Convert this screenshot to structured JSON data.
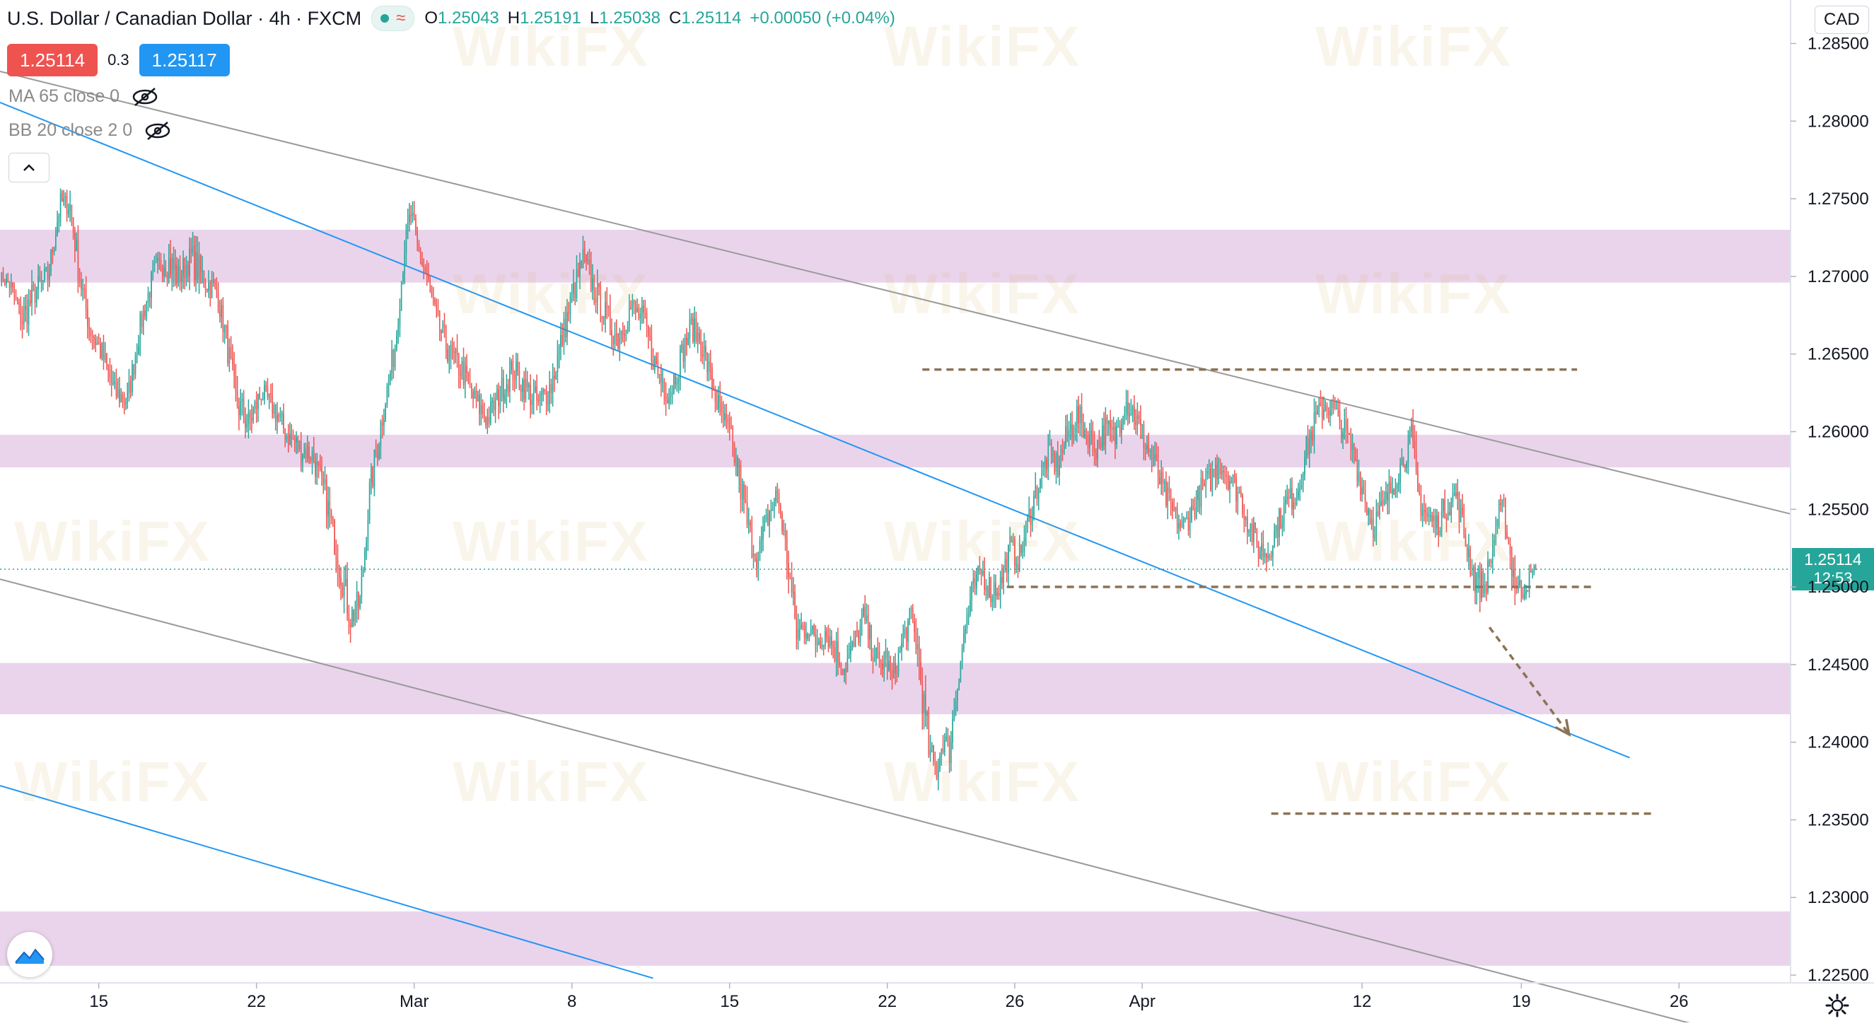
{
  "header": {
    "symbol_title": "U.S. Dollar / Canadian Dollar · 4h · FXCM",
    "ohlc": {
      "o_label": "O",
      "o": "1.25043",
      "h_label": "H",
      "h": "1.25191",
      "l_label": "L",
      "l": "1.25038",
      "c_label": "C",
      "c": "1.25114",
      "change": "+0.00050 (+0.04%)"
    },
    "sell_price": "1.25114",
    "spread": "0.3",
    "buy_price": "1.25117",
    "indicators": [
      "MA 65 close 0",
      "BB 20 close 2 0"
    ],
    "currency": "CAD"
  },
  "watermark": "WikiFX",
  "colors": {
    "up": "#26a69a",
    "down": "#ef5350",
    "zone": "#e6cce9",
    "channel_gray": "#9a9a9a",
    "channel_blue": "#2196f3",
    "level_dash": "#8b7355",
    "price_tag": "#26a69a"
  },
  "chart_data": {
    "type": "candlestick",
    "title": "U.S. Dollar / Canadian Dollar · 4h · FXCM",
    "y_axis": {
      "range": [
        1.2245,
        1.2878
      ],
      "ticks": [
        "1.28500",
        "1.28000",
        "1.27500",
        "1.27000",
        "1.26500",
        "1.26000",
        "1.25500",
        "1.25000",
        "1.24500",
        "1.24000",
        "1.23500",
        "1.23000",
        "1.22500"
      ],
      "position": "right"
    },
    "x_axis": {
      "ticks": [
        {
          "label": "15",
          "bar": 62
        },
        {
          "label": "22",
          "bar": 161
        },
        {
          "label": "Mar",
          "bar": 260
        },
        {
          "label": "8",
          "bar": 359
        },
        {
          "label": "15",
          "bar": 458
        },
        {
          "label": "22",
          "bar": 557
        },
        {
          "label": "26",
          "bar": 637
        },
        {
          "label": "Apr",
          "bar": 717
        },
        {
          "label": "12",
          "bar": 855
        },
        {
          "label": "19",
          "bar": 955
        },
        {
          "label": "26",
          "bar": 1054
        }
      ],
      "bar_range": [
        0,
        1124
      ]
    },
    "current_price": {
      "value": 1.25114,
      "label": "1.25114",
      "countdown": "12:53"
    },
    "price_path": [
      [
        0,
        1.27,
        1.2708,
        1.2692
      ],
      [
        6,
        1.2695,
        1.2712,
        1.268
      ],
      [
        14,
        1.2672,
        1.27,
        1.2652
      ],
      [
        22,
        1.269,
        1.271,
        1.267
      ],
      [
        30,
        1.27,
        1.272,
        1.2685
      ],
      [
        38,
        1.2748,
        1.2758,
        1.2728
      ],
      [
        44,
        1.2745,
        1.2765,
        1.272
      ],
      [
        50,
        1.27,
        1.2725,
        1.2685
      ],
      [
        56,
        1.2668,
        1.269,
        1.265
      ],
      [
        64,
        1.265,
        1.267,
        1.263
      ],
      [
        72,
        1.2625,
        1.2645,
        1.2608
      ],
      [
        80,
        1.262,
        1.2642,
        1.2605
      ],
      [
        88,
        1.2668,
        1.2685,
        1.265
      ],
      [
        96,
        1.27,
        1.272,
        1.268
      ],
      [
        104,
        1.2712,
        1.2748,
        1.2695
      ],
      [
        112,
        1.27,
        1.2722,
        1.2682
      ],
      [
        120,
        1.2712,
        1.274,
        1.269
      ],
      [
        128,
        1.2698,
        1.272,
        1.268
      ],
      [
        136,
        1.269,
        1.2705,
        1.267
      ],
      [
        142,
        1.266,
        1.269,
        1.2645
      ],
      [
        148,
        1.262,
        1.265,
        1.26
      ],
      [
        156,
        1.2605,
        1.263,
        1.2588
      ],
      [
        164,
        1.2625,
        1.264,
        1.2605
      ],
      [
        172,
        1.2615,
        1.2632,
        1.2595
      ],
      [
        180,
        1.2598,
        1.2612,
        1.2575
      ],
      [
        188,
        1.259,
        1.2608,
        1.257
      ],
      [
        196,
        1.2585,
        1.2605,
        1.2565
      ],
      [
        204,
        1.256,
        1.2585,
        1.254
      ],
      [
        212,
        1.252,
        1.255,
        1.25
      ],
      [
        220,
        1.248,
        1.251,
        1.2465
      ],
      [
        226,
        1.249,
        1.251,
        1.247
      ],
      [
        232,
        1.256,
        1.259,
        1.254
      ],
      [
        240,
        1.261,
        1.263,
        1.259
      ],
      [
        248,
        1.2655,
        1.268,
        1.264
      ],
      [
        254,
        1.272,
        1.274,
        1.27
      ],
      [
        258,
        1.274,
        1.276,
        1.272
      ],
      [
        262,
        1.2718,
        1.274,
        1.27
      ],
      [
        268,
        1.27,
        1.2715,
        1.268
      ],
      [
        274,
        1.2672,
        1.2695,
        1.2655
      ],
      [
        282,
        1.265,
        1.2672,
        1.263
      ],
      [
        290,
        1.264,
        1.266,
        1.262
      ],
      [
        298,
        1.262,
        1.264,
        1.26
      ],
      [
        306,
        1.2608,
        1.263,
        1.2592
      ],
      [
        314,
        1.2625,
        1.2645,
        1.2605
      ],
      [
        322,
        1.264,
        1.266,
        1.262
      ],
      [
        330,
        1.2628,
        1.265,
        1.2608
      ],
      [
        338,
        1.2618,
        1.264,
        1.2598
      ],
      [
        346,
        1.263,
        1.2652,
        1.261
      ],
      [
        354,
        1.2665,
        1.269,
        1.2648
      ],
      [
        360,
        1.269,
        1.2712,
        1.267
      ],
      [
        366,
        1.271,
        1.2735,
        1.269
      ],
      [
        372,
        1.2695,
        1.2715,
        1.2675
      ],
      [
        380,
        1.2675,
        1.2698,
        1.2655
      ],
      [
        388,
        1.266,
        1.268,
        1.264
      ],
      [
        396,
        1.268,
        1.2698,
        1.266
      ],
      [
        404,
        1.2672,
        1.269,
        1.265
      ],
      [
        412,
        1.264,
        1.2665,
        1.262
      ],
      [
        420,
        1.2625,
        1.2648,
        1.2605
      ],
      [
        428,
        1.265,
        1.2668,
        1.263
      ],
      [
        434,
        1.2668,
        1.2685,
        1.2648
      ],
      [
        440,
        1.2658,
        1.268,
        1.264
      ],
      [
        446,
        1.2635,
        1.266,
        1.2615
      ],
      [
        452,
        1.2612,
        1.2635,
        1.2595
      ],
      [
        458,
        1.2598,
        1.262,
        1.2578
      ],
      [
        464,
        1.257,
        1.26,
        1.2548
      ],
      [
        470,
        1.2535,
        1.2565,
        1.2515
      ],
      [
        476,
        1.252,
        1.254,
        1.25
      ],
      [
        482,
        1.2545,
        1.2565,
        1.2525
      ],
      [
        488,
        1.256,
        1.2575,
        1.254
      ],
      [
        494,
        1.252,
        1.255,
        1.25
      ],
      [
        500,
        1.247,
        1.25,
        1.2455
      ],
      [
        506,
        1.2475,
        1.2495,
        1.2455
      ],
      [
        512,
        1.2465,
        1.2485,
        1.244
      ],
      [
        518,
        1.2472,
        1.2492,
        1.2455
      ],
      [
        524,
        1.246,
        1.2485,
        1.244
      ],
      [
        530,
        1.2448,
        1.247,
        1.2432
      ],
      [
        536,
        1.2462,
        1.248,
        1.244
      ],
      [
        542,
        1.248,
        1.25,
        1.246
      ],
      [
        548,
        1.246,
        1.2485,
        1.2442
      ],
      [
        552,
        1.2448,
        1.247,
        1.243
      ],
      [
        556,
        1.2455,
        1.2475,
        1.244
      ],
      [
        560,
        1.244,
        1.246,
        1.2425
      ],
      [
        564,
        1.2455,
        1.247,
        1.2438
      ],
      [
        568,
        1.247,
        1.249,
        1.2452
      ],
      [
        572,
        1.248,
        1.25,
        1.246
      ],
      [
        576,
        1.246,
        1.2492,
        1.244
      ],
      [
        580,
        1.242,
        1.2462,
        1.2395
      ],
      [
        584,
        1.239,
        1.242,
        1.237
      ],
      [
        588,
        1.2382,
        1.24,
        1.2362
      ],
      [
        592,
        1.2402,
        1.242,
        1.238
      ],
      [
        596,
        1.2395,
        1.242,
        1.2375
      ],
      [
        600,
        1.243,
        1.245,
        1.241
      ],
      [
        604,
        1.2462,
        1.2482,
        1.244
      ],
      [
        610,
        1.2495,
        1.2515,
        1.2475
      ],
      [
        616,
        1.251,
        1.253,
        1.249
      ],
      [
        622,
        1.2498,
        1.2522,
        1.2478
      ],
      [
        628,
        1.2502,
        1.252,
        1.2482
      ],
      [
        634,
        1.2525,
        1.2545,
        1.2505
      ],
      [
        640,
        1.2518,
        1.254,
        1.2498
      ],
      [
        646,
        1.2545,
        1.2565,
        1.2525
      ],
      [
        652,
        1.2568,
        1.259,
        1.2548
      ],
      [
        658,
        1.2585,
        1.2605,
        1.2565
      ],
      [
        664,
        1.2578,
        1.2598,
        1.2558
      ],
      [
        670,
        1.2598,
        1.2618,
        1.2578
      ],
      [
        676,
        1.261,
        1.2632,
        1.259
      ],
      [
        682,
        1.26,
        1.262,
        1.258
      ],
      [
        688,
        1.259,
        1.261,
        1.257
      ],
      [
        694,
        1.2602,
        1.2622,
        1.2582
      ],
      [
        700,
        1.2596,
        1.2618,
        1.2576
      ],
      [
        706,
        1.262,
        1.264,
        1.26
      ],
      [
        712,
        1.2612,
        1.2635,
        1.2592
      ],
      [
        718,
        1.2595,
        1.2615,
        1.2575
      ],
      [
        724,
        1.2582,
        1.2602,
        1.2562
      ],
      [
        730,
        1.2562,
        1.2585,
        1.2542
      ],
      [
        736,
        1.2548,
        1.2568,
        1.253
      ],
      [
        742,
        1.2538,
        1.2558,
        1.252
      ],
      [
        748,
        1.2548,
        1.2568,
        1.253
      ],
      [
        754,
        1.2562,
        1.2582,
        1.2542
      ],
      [
        760,
        1.257,
        1.259,
        1.255
      ],
      [
        766,
        1.258,
        1.26,
        1.256
      ],
      [
        772,
        1.257,
        1.259,
        1.255
      ],
      [
        778,
        1.256,
        1.258,
        1.254
      ],
      [
        784,
        1.254,
        1.2562,
        1.252
      ],
      [
        790,
        1.2525,
        1.2548,
        1.2505
      ],
      [
        796,
        1.2522,
        1.254,
        1.2502
      ],
      [
        802,
        1.254,
        1.256,
        1.2522
      ],
      [
        808,
        1.2555,
        1.2575,
        1.2538
      ],
      [
        814,
        1.256,
        1.258,
        1.254
      ],
      [
        820,
        1.2588,
        1.261,
        1.2568
      ],
      [
        826,
        1.2608,
        1.2628,
        1.259
      ],
      [
        832,
        1.2618,
        1.2635,
        1.26
      ],
      [
        838,
        1.2612,
        1.263,
        1.2595
      ],
      [
        844,
        1.26,
        1.2618,
        1.258
      ],
      [
        850,
        1.2585,
        1.2605,
        1.2565
      ],
      [
        856,
        1.256,
        1.2585,
        1.254
      ],
      [
        862,
        1.254,
        1.2565,
        1.2522
      ],
      [
        868,
        1.255,
        1.257,
        1.253
      ],
      [
        874,
        1.2565,
        1.2582,
        1.2545
      ],
      [
        880,
        1.258,
        1.2598,
        1.256
      ],
      [
        886,
        1.2595,
        1.263,
        1.2575
      ],
      [
        890,
        1.256,
        1.2592,
        1.2545
      ],
      [
        896,
        1.2545,
        1.2565,
        1.2525
      ],
      [
        902,
        1.254,
        1.256,
        1.2522
      ],
      [
        908,
        1.2552,
        1.2572,
        1.2532
      ],
      [
        914,
        1.256,
        1.258,
        1.254
      ],
      [
        920,
        1.253,
        1.256,
        1.251
      ],
      [
        926,
        1.2505,
        1.253,
        1.2485
      ],
      [
        932,
        1.25,
        1.252,
        1.248
      ],
      [
        936,
        1.252,
        1.254,
        1.25
      ],
      [
        940,
        1.2545,
        1.2562,
        1.2525
      ],
      [
        944,
        1.255,
        1.2565,
        1.253
      ],
      [
        948,
        1.252,
        1.255,
        1.25
      ],
      [
        952,
        1.25,
        1.2522,
        1.2488
      ],
      [
        956,
        1.2498,
        1.2515,
        1.2485
      ],
      [
        960,
        1.2505,
        1.252,
        1.2492
      ],
      [
        964,
        1.2511,
        1.2519,
        1.2504
      ]
    ],
    "channels": [
      {
        "color": "gray",
        "points": [
          [
            0,
            1.2832
          ],
          [
            1124,
            1.2547
          ]
        ]
      },
      {
        "color": "gray",
        "points": [
          [
            0,
            1.2505
          ],
          [
            1124,
            1.2202
          ]
        ]
      },
      {
        "color": "blue",
        "points": [
          [
            0,
            1.2812
          ],
          [
            1023,
            1.239
          ]
        ]
      },
      {
        "color": "blue",
        "points": [
          [
            0,
            1.2372
          ],
          [
            410,
            1.2248
          ]
        ]
      }
    ],
    "zones": [
      [
        1.2696,
        1.273
      ],
      [
        1.2577,
        1.2598
      ],
      [
        1.2418,
        1.2451
      ],
      [
        1.2256,
        1.2291
      ]
    ],
    "levels": [
      {
        "value": 1.264,
        "from_bar": 579,
        "to_bar": 990
      },
      {
        "value": 1.25,
        "from_bar": 632,
        "to_bar": 1000
      },
      {
        "value": 1.2354,
        "from_bar": 798,
        "to_bar": 1038
      }
    ],
    "arrow": {
      "from": [
        935,
        1.2474
      ],
      "to": [
        985,
        1.2405
      ]
    }
  }
}
